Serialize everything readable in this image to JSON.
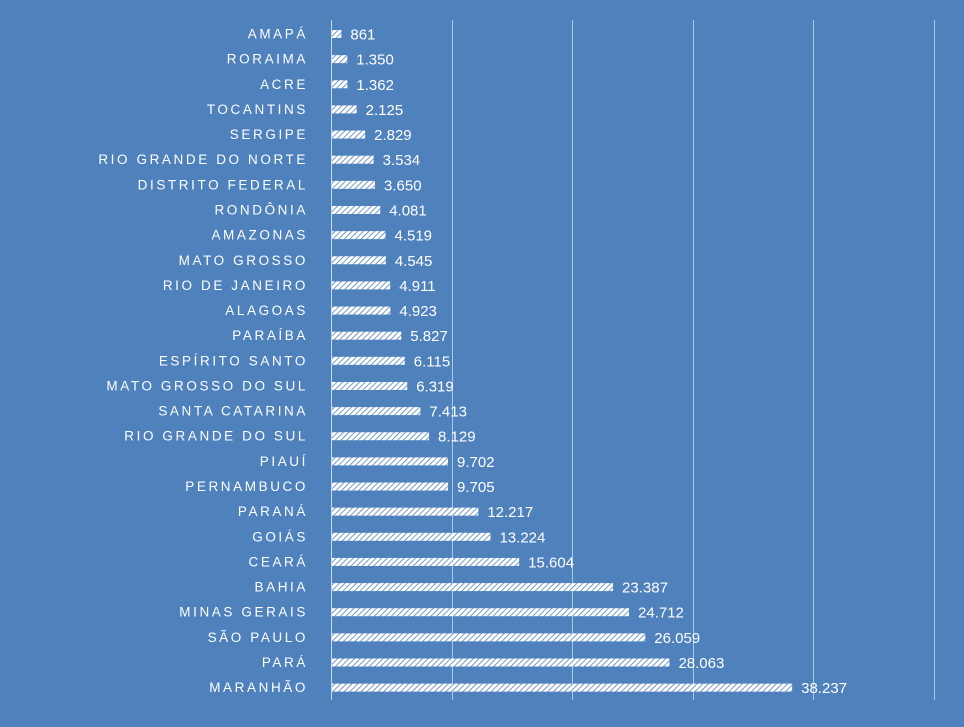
{
  "colors": {
    "background": "#4f81bd",
    "bar_fill": "#ffffff",
    "bar_hatch": "#4f81bd",
    "text": "#ffffff",
    "grid": "#ffffff"
  },
  "chart_data": {
    "type": "bar",
    "orientation": "horizontal",
    "title": "",
    "xlabel": "",
    "ylabel": "",
    "xlim": [
      0,
      50000
    ],
    "grid_step": 10000,
    "grid": true,
    "legend": "none",
    "categories": [
      "AMAPÁ",
      "RORAIMA",
      "ACRE",
      "TOCANTINS",
      "SERGIPE",
      "RIO GRANDE DO NORTE",
      "DISTRITO FEDERAL",
      "RONDÔNIA",
      "AMAZONAS",
      "MATO GROSSO",
      "RIO DE JANEIRO",
      "ALAGOAS",
      "PARAÍBA",
      "ESPÍRITO SANTO",
      "MATO GROSSO DO SUL",
      "SANTA CATARINA",
      "RIO GRANDE DO SUL",
      "PIAUÍ",
      "PERNAMBUCO",
      "PARANÁ",
      "GOIÁS",
      "CEARÁ",
      "BAHIA",
      "MINAS GERAIS",
      "SÃO PAULO",
      "PARÁ",
      "MARANHÃO"
    ],
    "values": [
      861,
      1350,
      1362,
      2125,
      2829,
      3534,
      3650,
      4081,
      4519,
      4545,
      4911,
      4923,
      5827,
      6115,
      6319,
      7413,
      8129,
      9702,
      9705,
      12217,
      13224,
      15604,
      23387,
      24712,
      26059,
      28063,
      38237
    ],
    "value_labels": [
      "861",
      "1.350",
      "1.362",
      "2.125",
      "2.829",
      "3.534",
      "3.650",
      "4.081",
      "4.519",
      "4.545",
      "4.911",
      "4.923",
      "5.827",
      "6.115",
      "6.319",
      "7.413",
      "8.129",
      "9.702",
      "9.705",
      "12.217",
      "13.224",
      "15.604",
      "23.387",
      "24.712",
      "26.059",
      "28.063",
      "38.237"
    ]
  }
}
